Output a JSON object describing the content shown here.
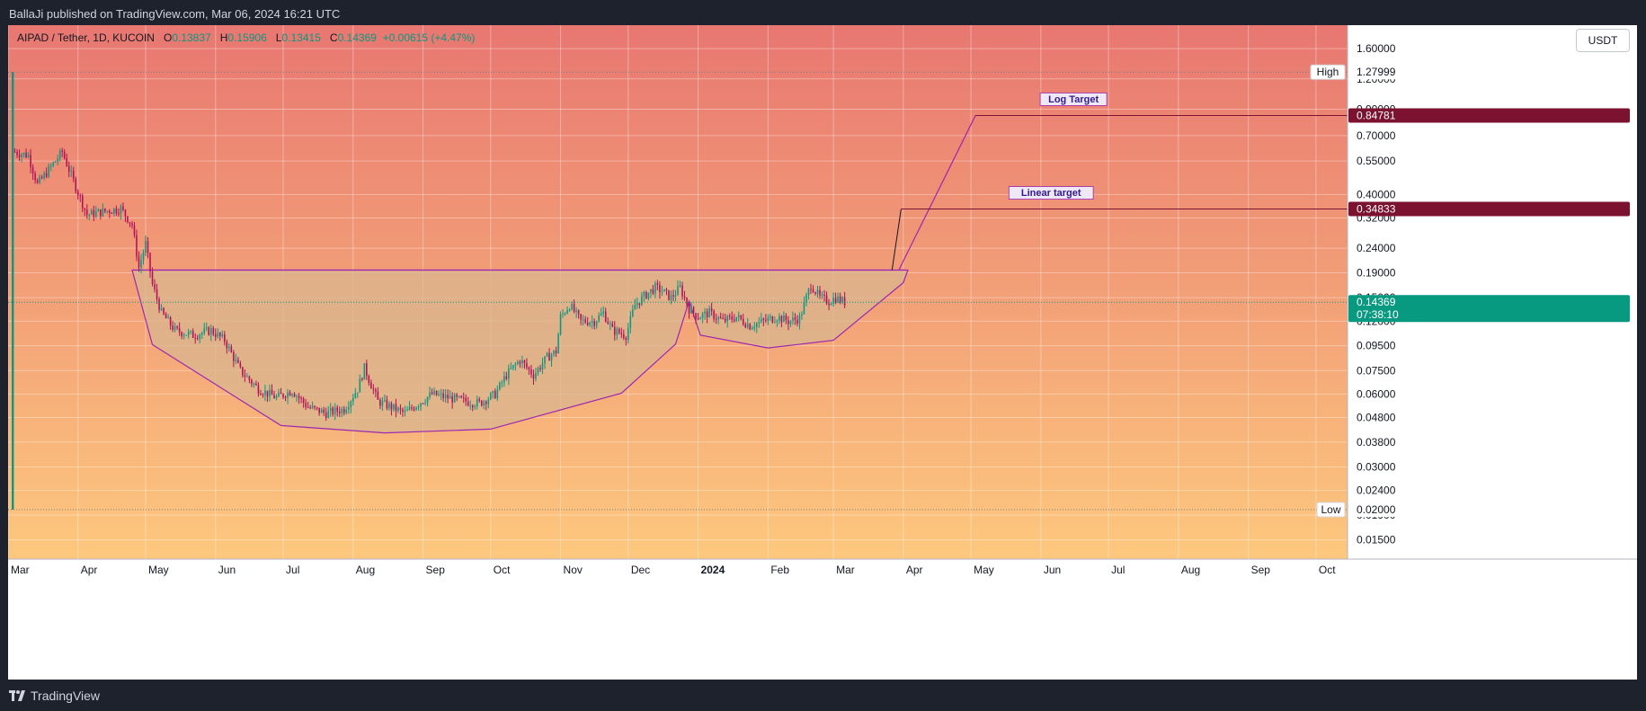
{
  "header": {
    "published_text": "BallaJi published on TradingView.com, Mar 06, 2024 16:21 UTC"
  },
  "legend": {
    "symbol": "AIPAD / Tether, 1D, KUCOIN",
    "open_label": "O",
    "open": "0.13837",
    "high_label": "H",
    "high": "0.15906",
    "low_label": "L",
    "low": "0.13415",
    "close_label": "C",
    "close": "0.14369",
    "change": "+0.00615 (+4.47%)"
  },
  "currency": "USDT",
  "footer": {
    "brand": "TradingView"
  },
  "colors": {
    "bg_top": "#e87771",
    "bg_bottom": "#fdc87e",
    "up": "#089981",
    "down": "#b2105a",
    "pattern_line": "#9c27b0",
    "pattern_fill": "#d9b58f",
    "target_line": "#7b1230",
    "last_price": "#089981"
  },
  "chart_data": {
    "type": "candlestick",
    "scale": "log",
    "ylim": [
      0.0125,
      2.0
    ],
    "xlim": [
      "2023-03-01",
      "2024-10-15"
    ],
    "y_ticks": [
      "1.60000",
      "1.20000",
      "0.90000",
      "0.70000",
      "0.55000",
      "0.40000",
      "0.32000",
      "0.24000",
      "0.19000",
      "0.15000",
      "0.12000",
      "0.09500",
      "0.07500",
      "0.06000",
      "0.04800",
      "0.03800",
      "0.03000",
      "0.02400",
      "0.01900",
      "0.01500"
    ],
    "x_ticks": [
      {
        "label": "Mar",
        "date": "2023-03-01"
      },
      {
        "label": "Apr",
        "date": "2023-04-01"
      },
      {
        "label": "May",
        "date": "2023-05-01"
      },
      {
        "label": "Jun",
        "date": "2023-06-01"
      },
      {
        "label": "Jul",
        "date": "2023-07-01"
      },
      {
        "label": "Aug",
        "date": "2023-08-01"
      },
      {
        "label": "Sep",
        "date": "2023-09-01"
      },
      {
        "label": "Oct",
        "date": "2023-10-01"
      },
      {
        "label": "Nov",
        "date": "2023-11-01"
      },
      {
        "label": "Dec",
        "date": "2023-12-01"
      },
      {
        "label": "2024",
        "date": "2024-01-01",
        "bold": true
      },
      {
        "label": "Feb",
        "date": "2024-02-01"
      },
      {
        "label": "Mar",
        "date": "2024-03-01"
      },
      {
        "label": "Apr",
        "date": "2024-04-01"
      },
      {
        "label": "May",
        "date": "2024-05-01"
      },
      {
        "label": "Jun",
        "date": "2024-06-01"
      },
      {
        "label": "Jul",
        "date": "2024-07-01"
      },
      {
        "label": "Aug",
        "date": "2024-08-01"
      },
      {
        "label": "Sep",
        "date": "2024-09-01"
      },
      {
        "label": "Oct",
        "date": "2024-10-01"
      }
    ],
    "price_path": [
      [
        "2023-03-04",
        0.6
      ],
      [
        "2023-03-10",
        0.58
      ],
      [
        "2023-03-14",
        0.44
      ],
      [
        "2023-03-20",
        0.52
      ],
      [
        "2023-03-25",
        0.6
      ],
      [
        "2023-03-31",
        0.43
      ],
      [
        "2023-04-05",
        0.33
      ],
      [
        "2023-04-12",
        0.34
      ],
      [
        "2023-04-20",
        0.35
      ],
      [
        "2023-04-25",
        0.3
      ],
      [
        "2023-04-28",
        0.2
      ],
      [
        "2023-05-01",
        0.25
      ],
      [
        "2023-05-04",
        0.17
      ],
      [
        "2023-05-08",
        0.13
      ],
      [
        "2023-05-14",
        0.11
      ],
      [
        "2023-05-22",
        0.105
      ],
      [
        "2023-05-30",
        0.11
      ],
      [
        "2023-06-05",
        0.1
      ],
      [
        "2023-06-12",
        0.075
      ],
      [
        "2023-06-20",
        0.063
      ],
      [
        "2023-06-28",
        0.058
      ],
      [
        "2023-07-05",
        0.062
      ],
      [
        "2023-07-12",
        0.053
      ],
      [
        "2023-07-20",
        0.05
      ],
      [
        "2023-07-28",
        0.052
      ],
      [
        "2023-08-03",
        0.063
      ],
      [
        "2023-08-06",
        0.077
      ],
      [
        "2023-08-12",
        0.056
      ],
      [
        "2023-08-18",
        0.053
      ],
      [
        "2023-08-24",
        0.05
      ],
      [
        "2023-08-30",
        0.055
      ],
      [
        "2023-09-05",
        0.06
      ],
      [
        "2023-09-12",
        0.058
      ],
      [
        "2023-09-20",
        0.056
      ],
      [
        "2023-09-26",
        0.055
      ],
      [
        "2023-10-03",
        0.06
      ],
      [
        "2023-10-08",
        0.072
      ],
      [
        "2023-10-14",
        0.083
      ],
      [
        "2023-10-20",
        0.072
      ],
      [
        "2023-10-26",
        0.085
      ],
      [
        "2023-10-30",
        0.09
      ],
      [
        "2023-11-01",
        0.125
      ],
      [
        "2023-11-05",
        0.14
      ],
      [
        "2023-11-10",
        0.12
      ],
      [
        "2023-11-16",
        0.12
      ],
      [
        "2023-11-20",
        0.13
      ],
      [
        "2023-11-24",
        0.11
      ],
      [
        "2023-11-30",
        0.105
      ],
      [
        "2023-12-04",
        0.14
      ],
      [
        "2023-12-09",
        0.155
      ],
      [
        "2023-12-13",
        0.165
      ],
      [
        "2023-12-16",
        0.16
      ],
      [
        "2023-12-20",
        0.15
      ],
      [
        "2023-12-24",
        0.165
      ],
      [
        "2023-12-28",
        0.135
      ],
      [
        "2024-01-01",
        0.125
      ],
      [
        "2024-01-06",
        0.13
      ],
      [
        "2024-01-12",
        0.12
      ],
      [
        "2024-01-18",
        0.125
      ],
      [
        "2024-01-24",
        0.115
      ],
      [
        "2024-01-30",
        0.12
      ],
      [
        "2024-02-05",
        0.125
      ],
      [
        "2024-02-10",
        0.12
      ],
      [
        "2024-02-15",
        0.123
      ],
      [
        "2024-02-18",
        0.15
      ],
      [
        "2024-02-20",
        0.17
      ],
      [
        "2024-02-24",
        0.15
      ],
      [
        "2024-02-28",
        0.145
      ],
      [
        "2024-03-02",
        0.15
      ],
      [
        "2024-03-06",
        0.14369
      ]
    ],
    "pattern": {
      "neckline": [
        [
          "2023-04-25",
          0.195
        ],
        [
          "2024-04-02",
          0.195
        ]
      ],
      "bottom": [
        [
          "2023-04-25",
          0.195
        ],
        [
          "2023-05-04",
          0.096
        ],
        [
          "2023-06-30",
          0.0445
        ],
        [
          "2023-08-15",
          0.0415
        ],
        [
          "2023-10-01",
          0.043
        ],
        [
          "2023-11-28",
          0.0605
        ],
        [
          "2023-12-22",
          0.0965
        ],
        [
          "2023-12-28",
          0.145
        ],
        [
          "2024-01-02",
          0.105
        ],
        [
          "2024-02-01",
          0.093
        ],
        [
          "2024-03-01",
          0.1
        ],
        [
          "2024-04-01",
          0.173
        ],
        [
          "2024-04-03",
          0.195
        ]
      ],
      "log_path": [
        [
          "2024-03-30",
          0.195
        ],
        [
          "2024-05-03",
          0.848
        ]
      ],
      "linear_path": [
        [
          "2024-03-27",
          0.195
        ],
        [
          "2024-03-31",
          0.348
        ]
      ]
    },
    "targets": [
      {
        "label": "Log Target",
        "value": 0.84781,
        "text": "0.84781",
        "from": "2024-05-03"
      },
      {
        "label": "Linear target",
        "value": 0.34833,
        "text": "0.34833",
        "from": "2024-03-31"
      }
    ],
    "high": {
      "label": "High",
      "value": 1.27999,
      "text": "1.27999"
    },
    "low": {
      "label": "Low",
      "value": 0.02,
      "text": "0.02000"
    },
    "last": {
      "value": 0.14369,
      "text": "0.14369",
      "countdown": "07:38:10"
    },
    "spike": {
      "date": "2023-03-03",
      "high": 1.27999,
      "low": 0.02
    }
  }
}
